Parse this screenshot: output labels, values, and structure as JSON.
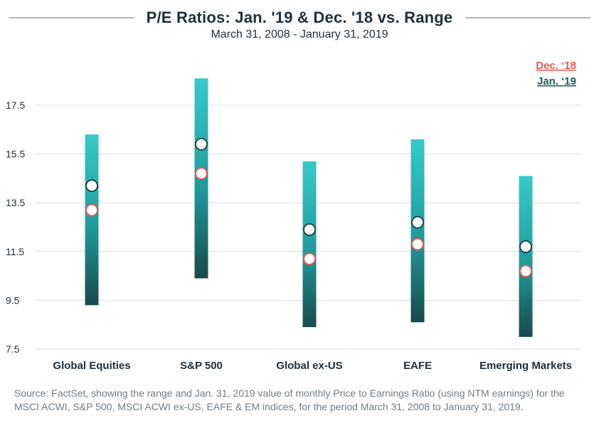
{
  "title": "P/E Ratios: Jan. '19 & Dec. '18 vs. Range",
  "subtitle": "March 31, 2008 - January 31, 2019",
  "source": "Source: FactSet, showing the range and Jan. 31, 2019 value of monthly Price to Earnings Ratio (using NTM earnings) for the MSCI ACWI, S&P 500, MSCI ACWI ex-US, EAFE & EM indices, for the period March 31, 2008 to January 31, 2019.",
  "colors": {
    "bar_top": "#35cbc8",
    "bar_mid": "#1f9a9a",
    "bar_bottom": "#184a4c",
    "dec18": "#e05a4f",
    "jan19": "#1d5a58",
    "grid": "#dcdcdc",
    "marker_fill": "#ffffff"
  },
  "chart_data": {
    "type": "range",
    "categories": [
      "Global Equities",
      "S&P 500",
      "Global ex-US",
      "EAFE",
      "Emerging Markets"
    ],
    "range_low": [
      9.3,
      10.4,
      8.4,
      8.6,
      8.0
    ],
    "range_high": [
      16.3,
      18.6,
      15.2,
      16.1,
      14.6
    ],
    "series": [
      {
        "name": "Dec. ‘18",
        "values": [
          13.2,
          14.7,
          11.2,
          11.8,
          10.7
        ]
      },
      {
        "name": "Jan. ‘19",
        "values": [
          14.2,
          15.9,
          12.4,
          12.7,
          11.7
        ]
      }
    ],
    "yticks": [
      "17.5",
      "15.5",
      "13.5",
      "11.5",
      "9.5",
      "7.5"
    ],
    "ylim": [
      7.5,
      17.5
    ],
    "grid": true,
    "legend_position": "top-right"
  }
}
